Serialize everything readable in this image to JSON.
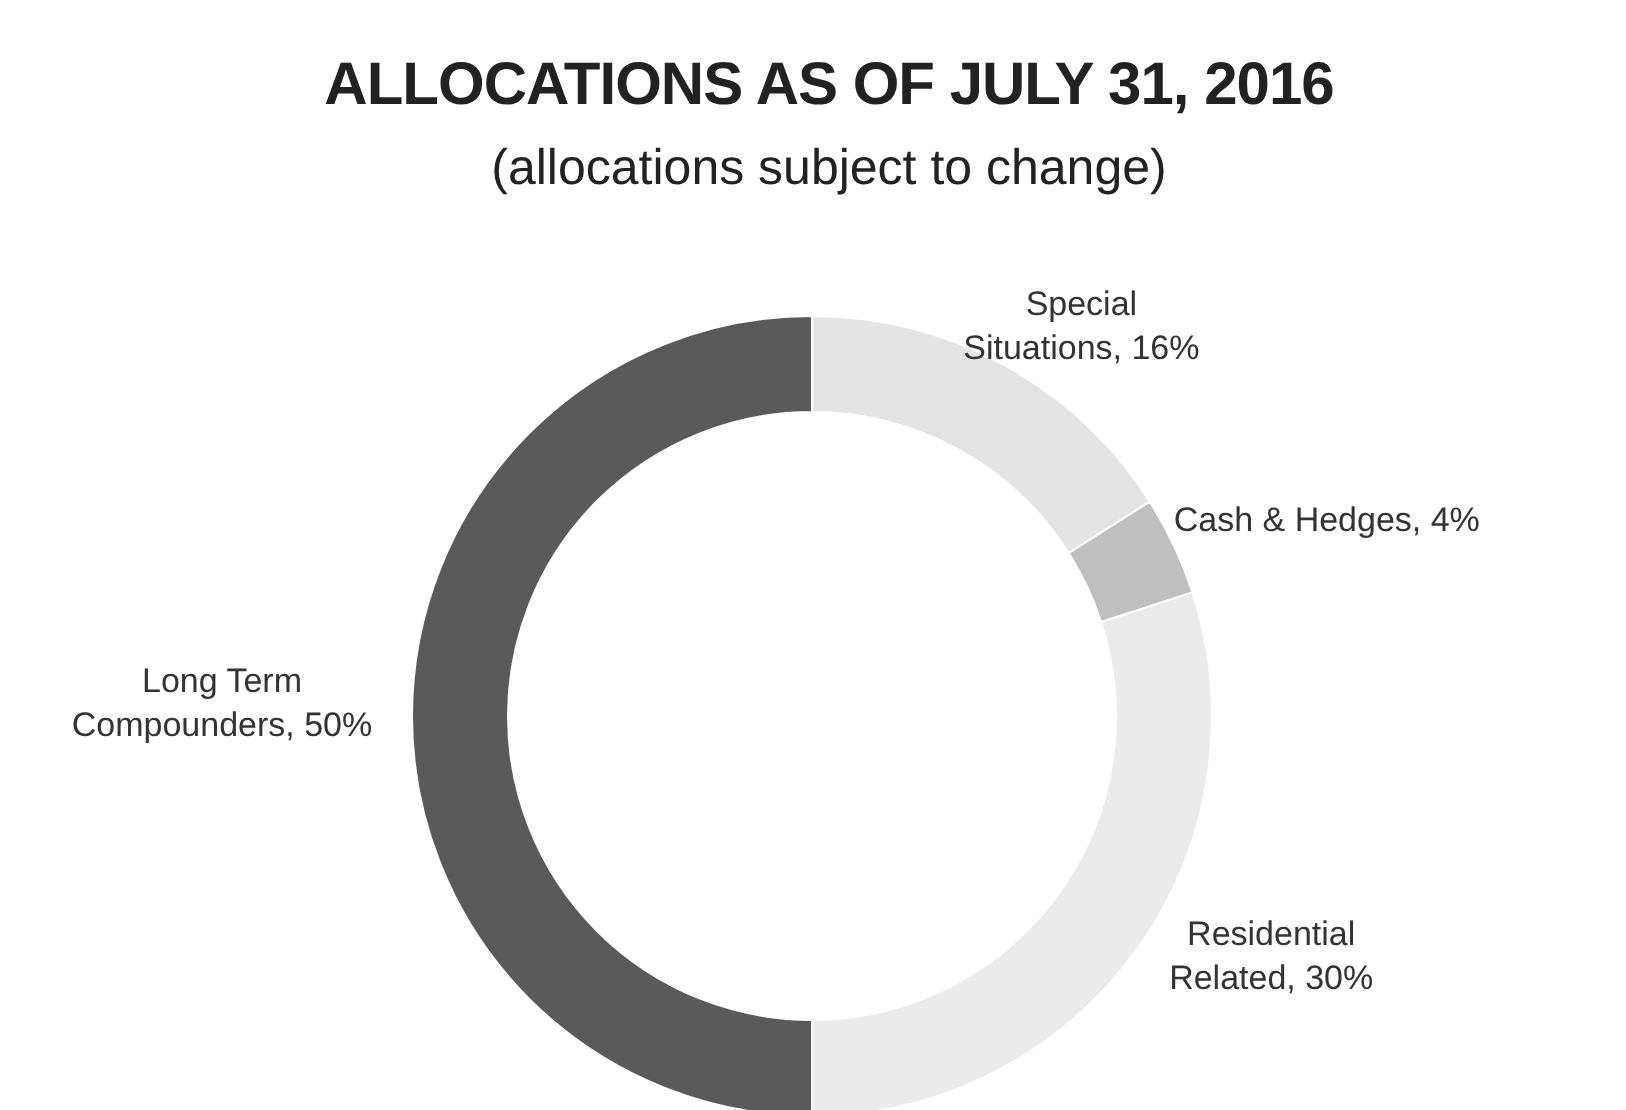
{
  "chart_data": {
    "type": "donut",
    "title": "ALLOCATIONS AS OF JULY 31, 2016",
    "subtitle": "(allocations subject to change)",
    "categories": [
      "Special Situations",
      "Cash & Hedges",
      "Residential Related",
      "Long Term Compounders"
    ],
    "values": [
      16,
      4,
      30,
      50
    ],
    "value_labels": [
      "16%",
      "4%",
      "30%",
      "50%"
    ],
    "colors": [
      "#e4e4e4",
      "#bfbfbf",
      "#ebebeb",
      "#5a5a5a"
    ]
  }
}
